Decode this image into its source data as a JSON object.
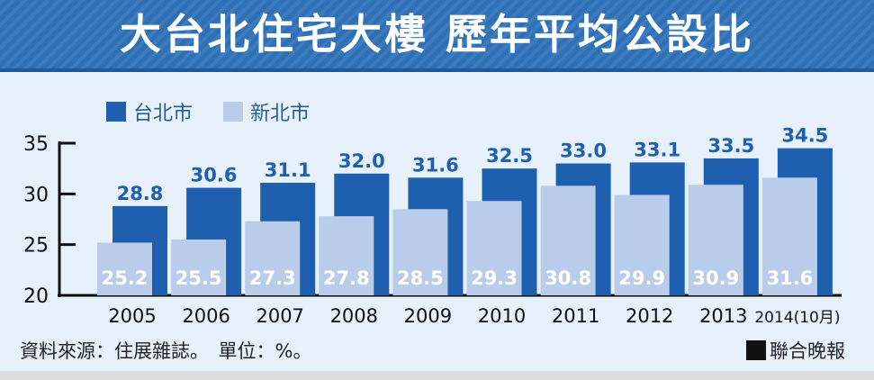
{
  "header": {
    "title": "大台北住宅大樓  歷年平均公設比"
  },
  "colors": {
    "banner": "#2e70b6",
    "taipei": "#1f5fb0",
    "newtaipei": "#b9cdea",
    "background": "#e6f1fb",
    "label_blue": "#1f5fb0"
  },
  "footer": {
    "source": "資料來源：住展雜誌。　單位：%。",
    "brand": "聯合晚報"
  },
  "chart_data": {
    "type": "bar",
    "categories": [
      "2005",
      "2006",
      "2007",
      "2008",
      "2009",
      "2010",
      "2011",
      "2012",
      "2013",
      "2014(10月)"
    ],
    "series": [
      {
        "name": "台北市",
        "values": [
          28.8,
          30.6,
          31.1,
          32.0,
          31.6,
          32.5,
          33.0,
          33.1,
          33.5,
          34.5
        ],
        "labels": [
          "28.8",
          "30.6",
          "31.1",
          "32.0",
          "31.6",
          "32.5",
          "33.0",
          "33.1",
          "33.5",
          "34.5"
        ]
      },
      {
        "name": "新北市",
        "values": [
          25.2,
          25.5,
          27.3,
          27.8,
          28.5,
          29.3,
          30.8,
          29.9,
          30.9,
          31.6
        ],
        "labels": [
          "25.2",
          "25.5",
          "27.3",
          "27.8",
          "28.5",
          "29.3",
          "30.8",
          "29.9",
          "30.9",
          "31.6"
        ]
      }
    ],
    "yticks": [
      "20",
      "25",
      "30",
      "35"
    ],
    "ylim": [
      20,
      35
    ],
    "legend": "top-left",
    "grid": false
  }
}
